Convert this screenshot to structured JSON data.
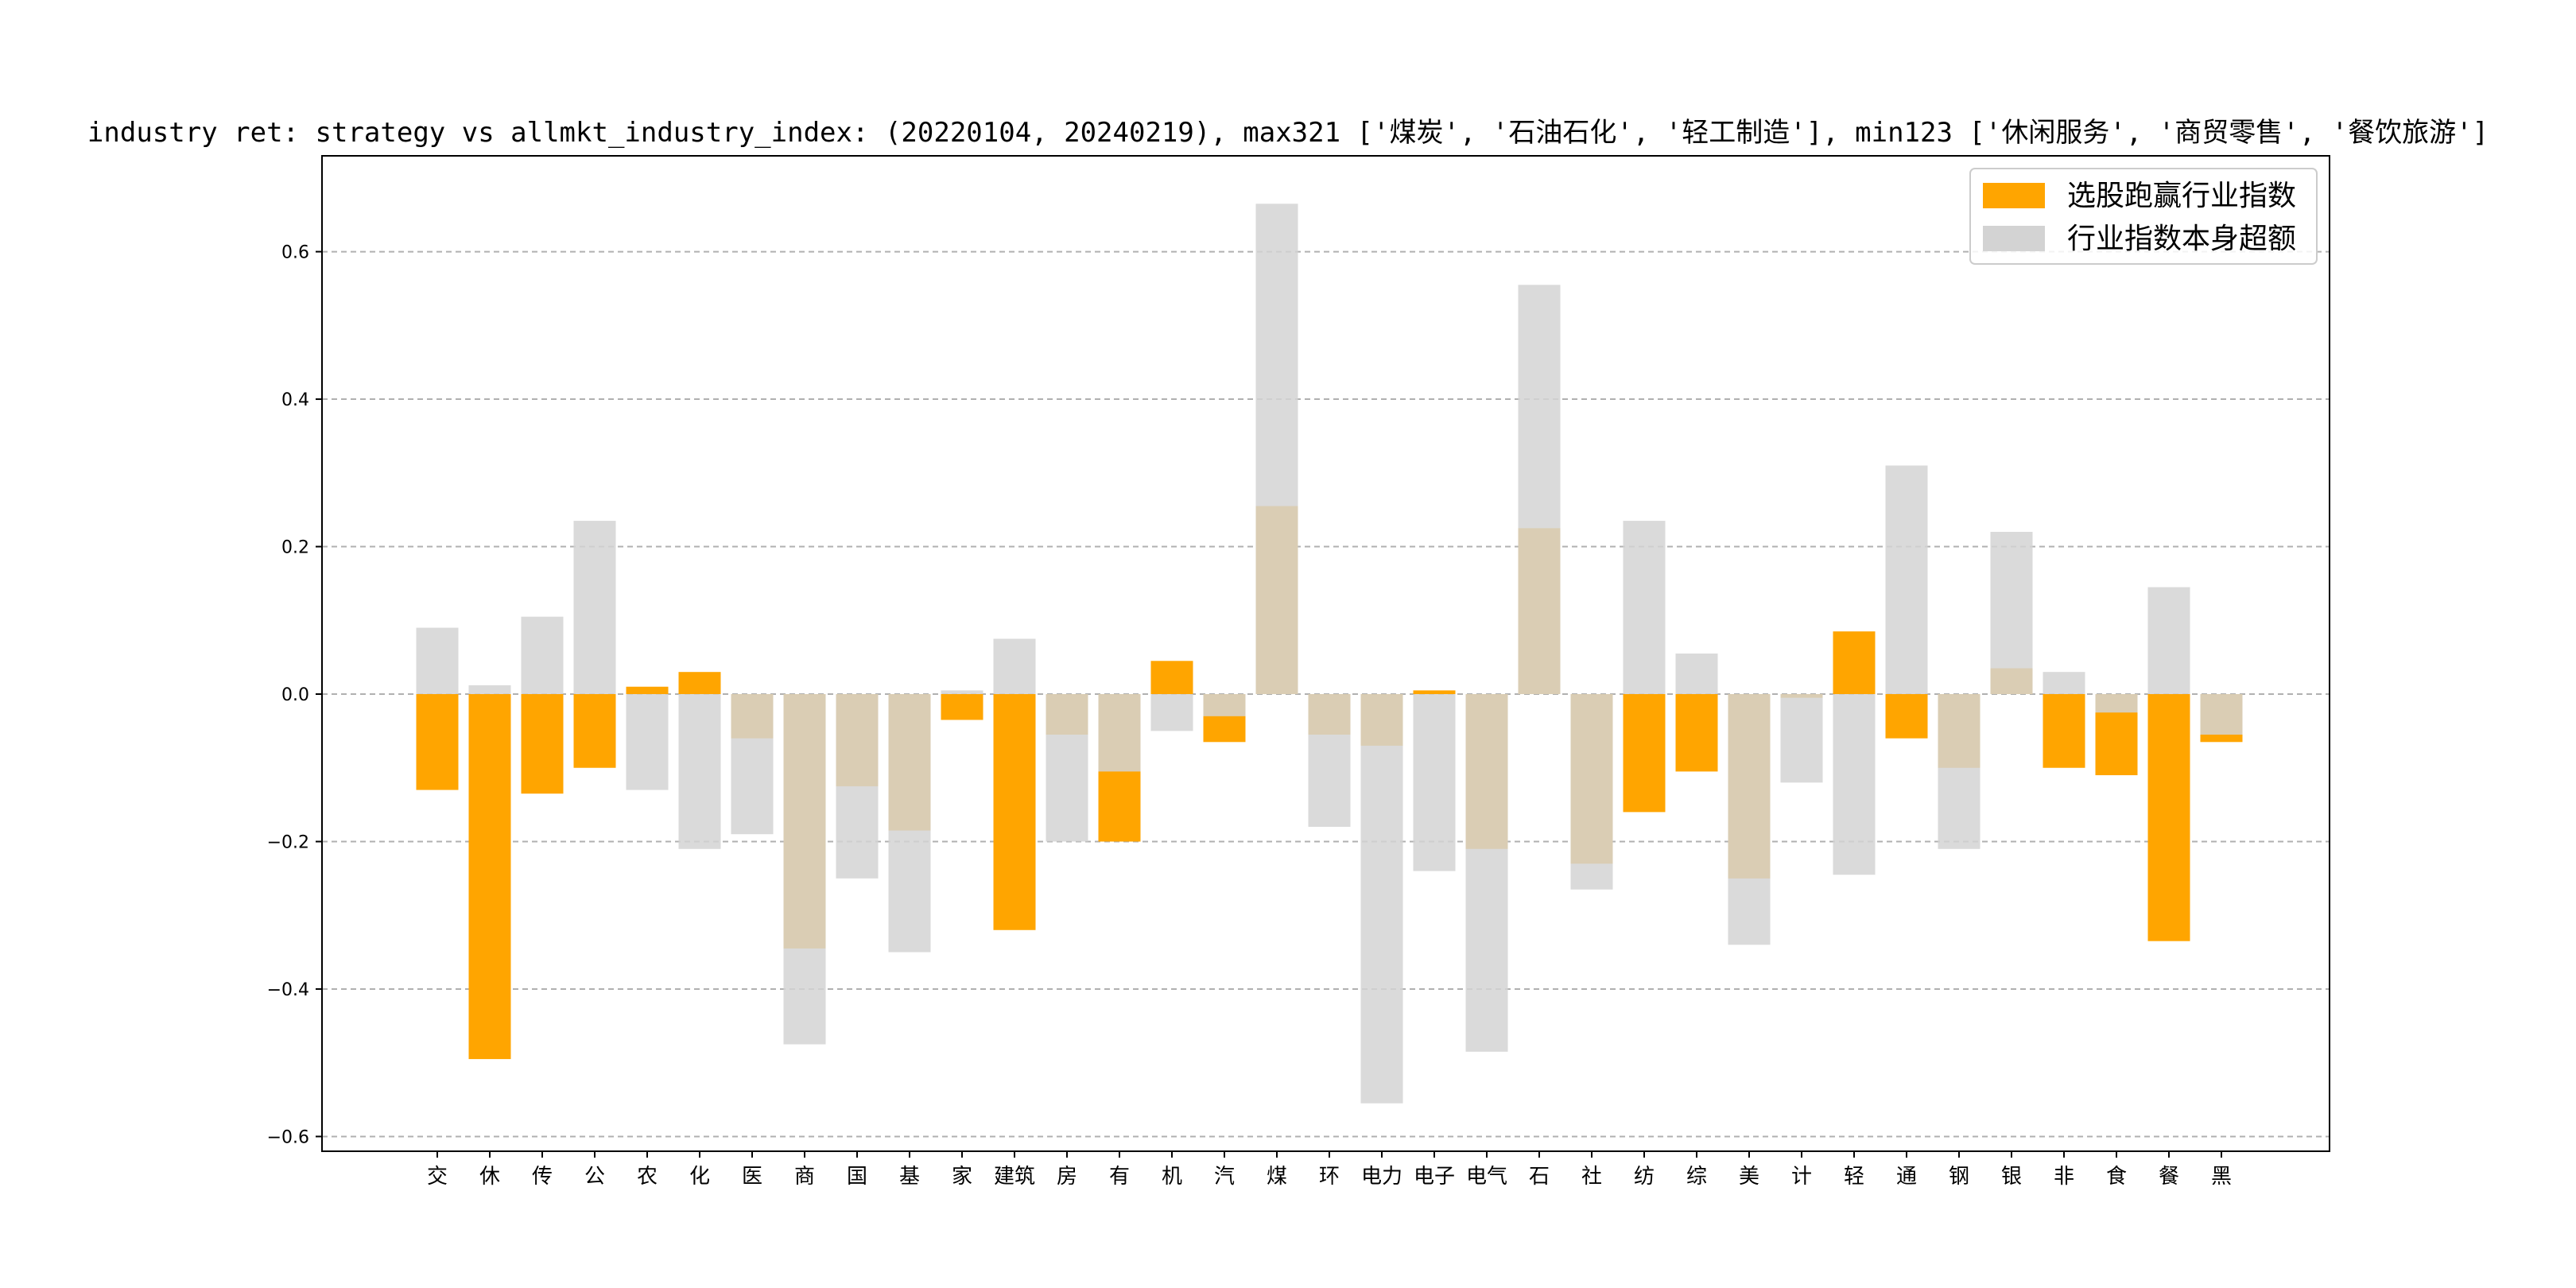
{
  "chart_data": {
    "type": "bar",
    "title": "industry ret: strategy vs allmkt_industry_index: (20220104, 20240219), max321 ['煤炭', '石油石化', '轻工制造'], min123 ['休闲服务', '商贸零售', '餐饮旅游']",
    "categories": [
      "交",
      "休",
      "传",
      "公",
      "农",
      "化",
      "医",
      "商",
      "国",
      "基",
      "家",
      "建筑",
      "房",
      "有",
      "机",
      "汽",
      "煤",
      "环",
      "电力",
      "电子",
      "电气",
      "石",
      "社",
      "纺",
      "综",
      "美",
      "计",
      "轻",
      "通",
      "钢",
      "银",
      "非",
      "食",
      "餐",
      "黑"
    ],
    "series": [
      {
        "name": "选股跑赢行业指数",
        "color": "#ffa500",
        "values": [
          -0.13,
          -0.495,
          -0.135,
          -0.1,
          0.01,
          0.03,
          -0.06,
          -0.345,
          -0.125,
          -0.185,
          -0.035,
          -0.32,
          -0.055,
          -0.2,
          0.045,
          -0.065,
          0.255,
          -0.055,
          -0.07,
          0.005,
          -0.21,
          0.225,
          -0.23,
          -0.16,
          -0.105,
          -0.25,
          -0.005,
          0.085,
          -0.06,
          -0.1,
          0.035,
          -0.1,
          -0.11,
          -0.335,
          -0.065
        ]
      },
      {
        "name": "行业指数本身超额",
        "color": "#d3d3d3",
        "values": [
          0.09,
          0.012,
          0.105,
          0.235,
          -0.13,
          -0.21,
          -0.19,
          -0.475,
          -0.25,
          -0.35,
          0.005,
          0.075,
          -0.2,
          -0.105,
          -0.05,
          -0.03,
          0.665,
          -0.18,
          -0.555,
          -0.24,
          -0.485,
          0.555,
          -0.265,
          0.235,
          0.055,
          -0.34,
          -0.12,
          -0.245,
          0.31,
          -0.21,
          0.22,
          0.03,
          -0.025,
          0.145,
          -0.055
        ]
      }
    ],
    "ylim": [
      -0.62,
      0.73
    ],
    "yticks": [
      "0.6",
      "0.4",
      "0.2",
      "0.0",
      "-0.2",
      "-0.4",
      "-0.6"
    ],
    "grid": true,
    "legend": "top-right"
  }
}
